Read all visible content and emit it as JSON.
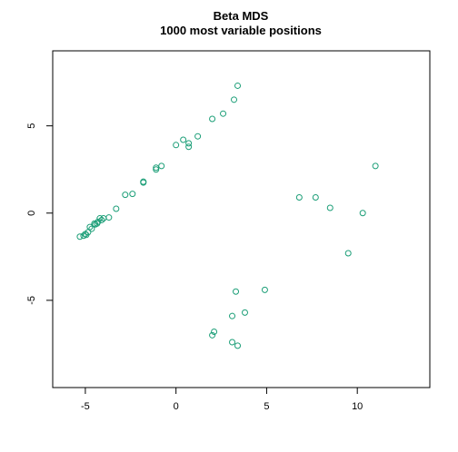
{
  "chart_data": {
    "type": "scatter",
    "title": "Beta MDS",
    "subtitle": "1000 most variable positions",
    "xlabel": "",
    "ylabel": "",
    "xlim": [
      -6.8,
      14
    ],
    "ylim": [
      -10,
      9.3
    ],
    "x_ticks": [
      -5,
      0,
      5,
      10
    ],
    "y_ticks": [
      -5,
      0,
      5
    ],
    "x_tick_labels": [
      "-5",
      "0",
      "5",
      "10"
    ],
    "y_tick_labels": [
      "-5",
      "0",
      "5"
    ],
    "grid": false,
    "legend": "none",
    "point_color": "#1b9e77",
    "points": [
      {
        "x": 3.4,
        "y": 7.3
      },
      {
        "x": 3.2,
        "y": 6.5
      },
      {
        "x": 2.6,
        "y": 5.7
      },
      {
        "x": 2.0,
        "y": 5.4
      },
      {
        "x": 1.2,
        "y": 4.4
      },
      {
        "x": 0.4,
        "y": 4.2
      },
      {
        "x": 0.7,
        "y": 4.0
      },
      {
        "x": 0.0,
        "y": 3.9
      },
      {
        "x": 0.7,
        "y": 3.8
      },
      {
        "x": -0.8,
        "y": 2.7
      },
      {
        "x": -1.1,
        "y": 2.6
      },
      {
        "x": -1.1,
        "y": 2.5
      },
      {
        "x": -1.8,
        "y": 1.8
      },
      {
        "x": -1.8,
        "y": 1.75
      },
      {
        "x": -2.4,
        "y": 1.1
      },
      {
        "x": -2.8,
        "y": 1.05
      },
      {
        "x": -3.3,
        "y": 0.25
      },
      {
        "x": -3.7,
        "y": -0.25
      },
      {
        "x": -4.0,
        "y": -0.3
      },
      {
        "x": -4.2,
        "y": -0.3
      },
      {
        "x": -4.1,
        "y": -0.4
      },
      {
        "x": -4.3,
        "y": -0.5
      },
      {
        "x": -4.35,
        "y": -0.6
      },
      {
        "x": -4.45,
        "y": -0.65
      },
      {
        "x": -4.5,
        "y": -0.6
      },
      {
        "x": -4.75,
        "y": -0.8
      },
      {
        "x": -4.65,
        "y": -0.9
      },
      {
        "x": -4.85,
        "y": -1.1
      },
      {
        "x": -5.0,
        "y": -1.2
      },
      {
        "x": -5.1,
        "y": -1.3
      },
      {
        "x": -5.3,
        "y": -1.35
      },
      {
        "x": -4.95,
        "y": -1.25
      },
      {
        "x": 11.0,
        "y": 2.7
      },
      {
        "x": 6.8,
        "y": 0.9
      },
      {
        "x": 7.7,
        "y": 0.9
      },
      {
        "x": 8.5,
        "y": 0.3
      },
      {
        "x": 10.3,
        "y": 0.0
      },
      {
        "x": 9.5,
        "y": -2.3
      },
      {
        "x": 4.9,
        "y": -4.4
      },
      {
        "x": 3.3,
        "y": -4.5
      },
      {
        "x": 3.8,
        "y": -5.7
      },
      {
        "x": 3.1,
        "y": -5.9
      },
      {
        "x": 2.1,
        "y": -6.8
      },
      {
        "x": 2.0,
        "y": -7.0
      },
      {
        "x": 3.1,
        "y": -7.4
      },
      {
        "x": 3.4,
        "y": -7.6
      }
    ]
  }
}
